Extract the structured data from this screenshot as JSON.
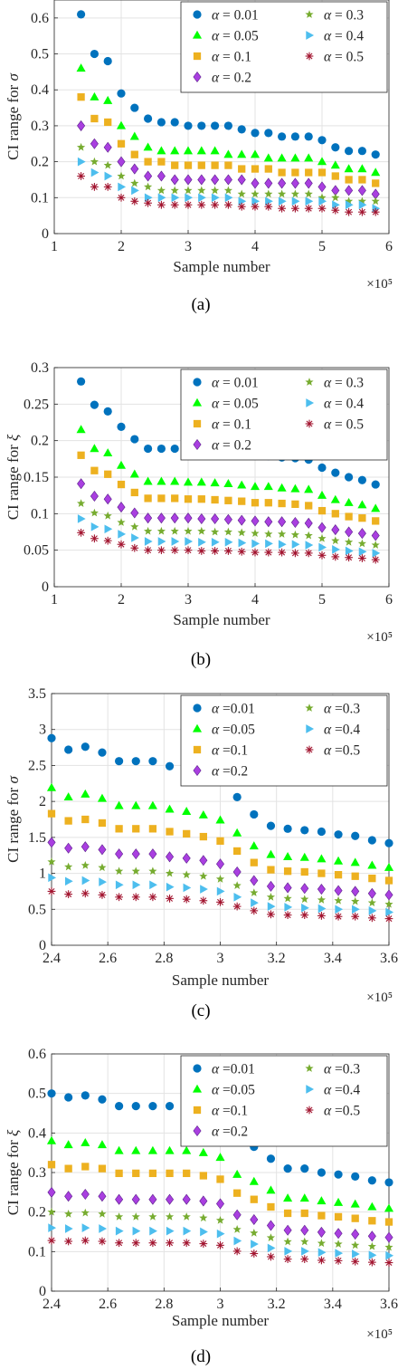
{
  "legend_labels": [
    "α = 0.01",
    "α = 0.05",
    "α = 0.1",
    "α = 0.2",
    "α = 0.3",
    "α = 0.4",
    "α = 0.5"
  ],
  "legend_labels_cd": [
    "α =0.01",
    "α =0.05",
    "α =0.1",
    "α =0.2",
    "α =0.3",
    "α =0.4",
    "α =0.5"
  ],
  "colors": {
    "a001": "#0072BD",
    "a005": "#00FF00",
    "a01": "#EDB120",
    "a02": "#A93FE0",
    "a03": "#77AC30",
    "a04": "#4DBEEE",
    "a05": "#A2142F"
  },
  "markers": {
    "a001": "circle-icon",
    "a005": "triangle-up-icon",
    "a01": "square-icon",
    "a02": "diamond-icon",
    "a03": "star-icon",
    "a04": "triangle-right-icon",
    "a05": "asterisk-icon"
  },
  "chart_data": [
    {
      "type": "scatter",
      "caption": "(a)",
      "xlabel": "Sample number",
      "ylabel": "CI range for σ",
      "x_exponent": "×10⁵",
      "xlim": [
        1,
        6
      ],
      "ylim": [
        0,
        0.65
      ],
      "xticks": [
        1,
        2,
        3,
        4,
        5,
        6
      ],
      "yticks": [
        0,
        0.1,
        0.2,
        0.3,
        0.4,
        0.5,
        0.6
      ],
      "ytick_labels": [
        "0",
        "0.1",
        "0.2",
        "0.3",
        "0.4",
        "0.5",
        "0.6"
      ],
      "grid": true,
      "legend_position": "top-right",
      "x": [
        1.4,
        1.6,
        1.8,
        2.0,
        2.2,
        2.4,
        2.6,
        2.8,
        3.0,
        3.2,
        3.4,
        3.6,
        3.8,
        4.0,
        4.2,
        4.4,
        4.6,
        4.8,
        5.0,
        5.2,
        5.4,
        5.6,
        5.8
      ],
      "series": [
        {
          "name": "α = 0.01",
          "key": "a001",
          "values": [
            0.61,
            0.5,
            0.48,
            0.39,
            0.35,
            0.32,
            0.31,
            0.31,
            0.3,
            0.3,
            0.3,
            0.3,
            0.29,
            0.28,
            0.28,
            0.27,
            0.27,
            0.27,
            0.26,
            0.24,
            0.23,
            0.23,
            0.22
          ]
        },
        {
          "name": "α = 0.05",
          "key": "a005",
          "values": [
            0.46,
            0.38,
            0.37,
            0.3,
            0.27,
            0.24,
            0.23,
            0.23,
            0.23,
            0.23,
            0.23,
            0.22,
            0.22,
            0.22,
            0.21,
            0.21,
            0.21,
            0.21,
            0.2,
            0.19,
            0.18,
            0.18,
            0.17
          ]
        },
        {
          "name": "α = 0.1",
          "key": "a01",
          "values": [
            0.38,
            0.32,
            0.31,
            0.25,
            0.22,
            0.2,
            0.2,
            0.19,
            0.19,
            0.19,
            0.19,
            0.19,
            0.18,
            0.18,
            0.18,
            0.17,
            0.17,
            0.17,
            0.17,
            0.16,
            0.15,
            0.15,
            0.14
          ]
        },
        {
          "name": "α = 0.2",
          "key": "a02",
          "values": [
            0.3,
            0.25,
            0.24,
            0.2,
            0.18,
            0.16,
            0.16,
            0.15,
            0.15,
            0.15,
            0.15,
            0.15,
            0.15,
            0.14,
            0.14,
            0.14,
            0.14,
            0.14,
            0.13,
            0.12,
            0.12,
            0.12,
            0.11
          ]
        },
        {
          "name": "α = 0.3",
          "key": "a03",
          "values": [
            0.24,
            0.2,
            0.19,
            0.16,
            0.14,
            0.13,
            0.12,
            0.12,
            0.12,
            0.12,
            0.12,
            0.12,
            0.11,
            0.11,
            0.11,
            0.11,
            0.11,
            0.11,
            0.1,
            0.1,
            0.09,
            0.09,
            0.09
          ]
        },
        {
          "name": "α = 0.4",
          "key": "a04",
          "values": [
            0.2,
            0.17,
            0.16,
            0.13,
            0.12,
            0.1,
            0.1,
            0.1,
            0.1,
            0.1,
            0.1,
            0.1,
            0.09,
            0.09,
            0.09,
            0.09,
            0.09,
            0.09,
            0.09,
            0.08,
            0.08,
            0.08,
            0.07
          ]
        },
        {
          "name": "α = 0.5",
          "key": "a05",
          "values": [
            0.16,
            0.13,
            0.13,
            0.1,
            0.09,
            0.085,
            0.08,
            0.08,
            0.08,
            0.08,
            0.08,
            0.08,
            0.075,
            0.075,
            0.075,
            0.07,
            0.07,
            0.07,
            0.07,
            0.065,
            0.06,
            0.06,
            0.06
          ]
        }
      ]
    },
    {
      "type": "scatter",
      "caption": "(b)",
      "xlabel": "Sample number",
      "ylabel": "CI range for ξ",
      "x_exponent": "×10⁵",
      "xlim": [
        1,
        6
      ],
      "ylim": [
        0,
        0.3
      ],
      "xticks": [
        1,
        2,
        3,
        4,
        5,
        6
      ],
      "yticks": [
        0,
        0.05,
        0.1,
        0.15,
        0.2,
        0.25,
        0.3
      ],
      "ytick_labels": [
        "0",
        "0.05",
        "0.1",
        "0.15",
        "0.2",
        "0.25",
        "0.3"
      ],
      "grid": true,
      "legend_position": "top-right",
      "x": [
        1.4,
        1.6,
        1.8,
        2.0,
        2.2,
        2.4,
        2.6,
        2.8,
        3.0,
        3.2,
        3.4,
        3.6,
        3.8,
        4.0,
        4.2,
        4.4,
        4.6,
        4.8,
        5.0,
        5.2,
        5.4,
        5.6,
        5.8
      ],
      "series": [
        {
          "name": "α = 0.01",
          "key": "a001",
          "values": [
            0.281,
            0.249,
            0.24,
            0.219,
            0.202,
            0.189,
            0.189,
            0.189,
            0.188,
            0.187,
            0.186,
            0.185,
            0.182,
            0.18,
            0.179,
            0.177,
            0.176,
            0.174,
            0.163,
            0.156,
            0.15,
            0.146,
            0.14
          ]
        },
        {
          "name": "α = 0.05",
          "key": "a005",
          "values": [
            0.215,
            0.189,
            0.183,
            0.166,
            0.154,
            0.144,
            0.144,
            0.144,
            0.143,
            0.143,
            0.142,
            0.141,
            0.139,
            0.137,
            0.137,
            0.135,
            0.134,
            0.133,
            0.125,
            0.119,
            0.115,
            0.112,
            0.107
          ]
        },
        {
          "name": "α = 0.1",
          "key": "a01",
          "values": [
            0.18,
            0.159,
            0.154,
            0.14,
            0.129,
            0.121,
            0.121,
            0.121,
            0.12,
            0.12,
            0.119,
            0.118,
            0.117,
            0.115,
            0.115,
            0.114,
            0.113,
            0.111,
            0.104,
            0.1,
            0.096,
            0.094,
            0.09
          ]
        },
        {
          "name": "α = 0.2",
          "key": "a02",
          "values": [
            0.141,
            0.124,
            0.12,
            0.109,
            0.101,
            0.094,
            0.094,
            0.094,
            0.094,
            0.093,
            0.093,
            0.092,
            0.091,
            0.09,
            0.089,
            0.089,
            0.088,
            0.087,
            0.081,
            0.078,
            0.075,
            0.073,
            0.07
          ]
        },
        {
          "name": "α = 0.3",
          "key": "a03",
          "values": [
            0.114,
            0.101,
            0.097,
            0.088,
            0.082,
            0.076,
            0.076,
            0.076,
            0.076,
            0.076,
            0.075,
            0.075,
            0.074,
            0.073,
            0.072,
            0.072,
            0.071,
            0.07,
            0.066,
            0.063,
            0.061,
            0.059,
            0.057
          ]
        },
        {
          "name": "α = 0.4",
          "key": "a04",
          "values": [
            0.093,
            0.082,
            0.079,
            0.072,
            0.067,
            0.062,
            0.062,
            0.062,
            0.062,
            0.061,
            0.061,
            0.061,
            0.06,
            0.059,
            0.059,
            0.058,
            0.058,
            0.057,
            0.054,
            0.051,
            0.049,
            0.048,
            0.046
          ]
        },
        {
          "name": "α = 0.5",
          "key": "a05",
          "values": [
            0.074,
            0.066,
            0.063,
            0.058,
            0.053,
            0.05,
            0.05,
            0.05,
            0.05,
            0.049,
            0.049,
            0.049,
            0.048,
            0.047,
            0.047,
            0.047,
            0.046,
            0.046,
            0.043,
            0.041,
            0.04,
            0.039,
            0.037
          ]
        }
      ]
    },
    {
      "type": "scatter",
      "caption": "(c)",
      "xlabel": "Sample number",
      "ylabel": "CI range for σ",
      "x_exponent": "×10⁵",
      "xlim": [
        2.4,
        3.6
      ],
      "ylim": [
        0,
        3.5
      ],
      "xticks": [
        2.4,
        2.6,
        2.8,
        3.0,
        3.2,
        3.4,
        3.6
      ],
      "xtick_labels": [
        "2.4",
        "2.6",
        "2.8",
        "3",
        "3.2",
        "3.4",
        "3.6"
      ],
      "yticks": [
        0,
        0.5,
        1,
        1.5,
        2,
        2.5,
        3,
        3.5
      ],
      "ytick_labels": [
        "0",
        "0.5",
        "1",
        "1.5",
        "2",
        "2.5",
        "3",
        "3.5"
      ],
      "grid": true,
      "legend_position": "top-right",
      "x": [
        2.4,
        2.46,
        2.52,
        2.58,
        2.64,
        2.7,
        2.76,
        2.82,
        2.88,
        2.94,
        3.0,
        3.06,
        3.12,
        3.18,
        3.24,
        3.3,
        3.36,
        3.42,
        3.48,
        3.54,
        3.6
      ],
      "series": [
        {
          "name": "α =0.01",
          "key": "a001",
          "values": [
            2.88,
            2.72,
            2.76,
            2.68,
            2.56,
            2.56,
            2.56,
            2.49,
            2.44,
            2.38,
            2.28,
            2.06,
            1.82,
            1.66,
            1.62,
            1.6,
            1.58,
            1.54,
            1.52,
            1.46,
            1.42
          ]
        },
        {
          "name": "α =0.05",
          "key": "a005",
          "values": [
            2.19,
            2.06,
            2.1,
            2.04,
            1.94,
            1.94,
            1.94,
            1.89,
            1.86,
            1.81,
            1.74,
            1.56,
            1.38,
            1.26,
            1.23,
            1.22,
            1.2,
            1.17,
            1.15,
            1.11,
            1.08
          ]
        },
        {
          "name": "α =0.1",
          "key": "a01",
          "values": [
            1.83,
            1.73,
            1.75,
            1.7,
            1.62,
            1.62,
            1.62,
            1.58,
            1.55,
            1.51,
            1.45,
            1.31,
            1.15,
            1.05,
            1.03,
            1.02,
            1.0,
            0.98,
            0.96,
            0.93,
            0.9
          ]
        },
        {
          "name": "α =0.2",
          "key": "a02",
          "values": [
            1.43,
            1.35,
            1.37,
            1.33,
            1.27,
            1.27,
            1.27,
            1.23,
            1.21,
            1.18,
            1.13,
            1.02,
            0.9,
            0.82,
            0.8,
            0.79,
            0.78,
            0.76,
            0.75,
            0.72,
            0.7
          ]
        },
        {
          "name": "α =0.3",
          "key": "a03",
          "values": [
            1.16,
            1.09,
            1.11,
            1.08,
            1.03,
            1.03,
            1.03,
            1.0,
            0.98,
            0.96,
            0.92,
            0.83,
            0.73,
            0.67,
            0.65,
            0.64,
            0.63,
            0.62,
            0.61,
            0.59,
            0.57
          ]
        },
        {
          "name": "α =0.4",
          "key": "a04",
          "values": [
            0.94,
            0.89,
            0.9,
            0.88,
            0.84,
            0.84,
            0.84,
            0.81,
            0.8,
            0.78,
            0.75,
            0.67,
            0.59,
            0.54,
            0.53,
            0.52,
            0.51,
            0.5,
            0.5,
            0.48,
            0.46
          ]
        },
        {
          "name": "α =0.5",
          "key": "a05",
          "values": [
            0.75,
            0.71,
            0.72,
            0.7,
            0.67,
            0.67,
            0.67,
            0.65,
            0.64,
            0.62,
            0.6,
            0.54,
            0.48,
            0.43,
            0.42,
            0.42,
            0.41,
            0.4,
            0.4,
            0.38,
            0.37
          ]
        }
      ]
    },
    {
      "type": "scatter",
      "caption": "(d)",
      "xlabel": "Sample number",
      "ylabel": "CI range for ξ",
      "x_exponent": "×10⁵",
      "xlim": [
        2.4,
        3.6
      ],
      "ylim": [
        0,
        0.6
      ],
      "xticks": [
        2.4,
        2.6,
        2.8,
        3.0,
        3.2,
        3.4,
        3.6
      ],
      "xtick_labels": [
        "2.4",
        "2.6",
        "2.8",
        "3",
        "3.2",
        "3.4",
        "3.6"
      ],
      "yticks": [
        0,
        0.1,
        0.2,
        0.3,
        0.4,
        0.5,
        0.6
      ],
      "ytick_labels": [
        "0",
        "0.1",
        "0.2",
        "0.3",
        "0.4",
        "0.5",
        "0.6"
      ],
      "grid": true,
      "legend_position": "top-right",
      "x": [
        2.4,
        2.46,
        2.52,
        2.58,
        2.64,
        2.7,
        2.76,
        2.82,
        2.88,
        2.94,
        3.0,
        3.06,
        3.12,
        3.18,
        3.24,
        3.3,
        3.36,
        3.42,
        3.48,
        3.54,
        3.6
      ],
      "series": [
        {
          "name": "α =0.01",
          "key": "a001",
          "values": [
            0.5,
            0.49,
            0.495,
            0.485,
            0.468,
            0.468,
            0.468,
            0.468,
            0.468,
            0.46,
            0.445,
            0.39,
            0.365,
            0.335,
            0.31,
            0.31,
            0.3,
            0.295,
            0.29,
            0.28,
            0.275
          ]
        },
        {
          "name": "α =0.05",
          "key": "a005",
          "values": [
            0.38,
            0.37,
            0.375,
            0.37,
            0.355,
            0.355,
            0.355,
            0.355,
            0.355,
            0.35,
            0.338,
            0.295,
            0.277,
            0.255,
            0.235,
            0.235,
            0.228,
            0.224,
            0.22,
            0.213,
            0.209
          ]
        },
        {
          "name": "α =0.1",
          "key": "a01",
          "values": [
            0.32,
            0.31,
            0.315,
            0.31,
            0.298,
            0.298,
            0.298,
            0.298,
            0.298,
            0.292,
            0.283,
            0.248,
            0.232,
            0.213,
            0.197,
            0.197,
            0.191,
            0.188,
            0.184,
            0.178,
            0.175
          ]
        },
        {
          "name": "α =0.2",
          "key": "a02",
          "values": [
            0.25,
            0.24,
            0.245,
            0.24,
            0.232,
            0.232,
            0.232,
            0.232,
            0.232,
            0.228,
            0.221,
            0.193,
            0.181,
            0.166,
            0.154,
            0.154,
            0.149,
            0.146,
            0.144,
            0.139,
            0.136
          ]
        },
        {
          "name": "α =0.3",
          "key": "a03",
          "values": [
            0.2,
            0.195,
            0.198,
            0.195,
            0.188,
            0.188,
            0.188,
            0.188,
            0.188,
            0.185,
            0.179,
            0.156,
            0.147,
            0.135,
            0.125,
            0.125,
            0.121,
            0.119,
            0.116,
            0.113,
            0.111
          ]
        },
        {
          "name": "α =0.4",
          "key": "a04",
          "values": [
            0.16,
            0.158,
            0.16,
            0.158,
            0.152,
            0.152,
            0.152,
            0.152,
            0.152,
            0.15,
            0.145,
            0.127,
            0.119,
            0.109,
            0.101,
            0.101,
            0.098,
            0.096,
            0.094,
            0.091,
            0.09
          ]
        },
        {
          "name": "α =0.5",
          "key": "a05",
          "values": [
            0.128,
            0.126,
            0.128,
            0.126,
            0.122,
            0.122,
            0.122,
            0.122,
            0.122,
            0.12,
            0.116,
            0.101,
            0.095,
            0.087,
            0.081,
            0.081,
            0.078,
            0.077,
            0.075,
            0.073,
            0.072
          ]
        }
      ]
    }
  ]
}
